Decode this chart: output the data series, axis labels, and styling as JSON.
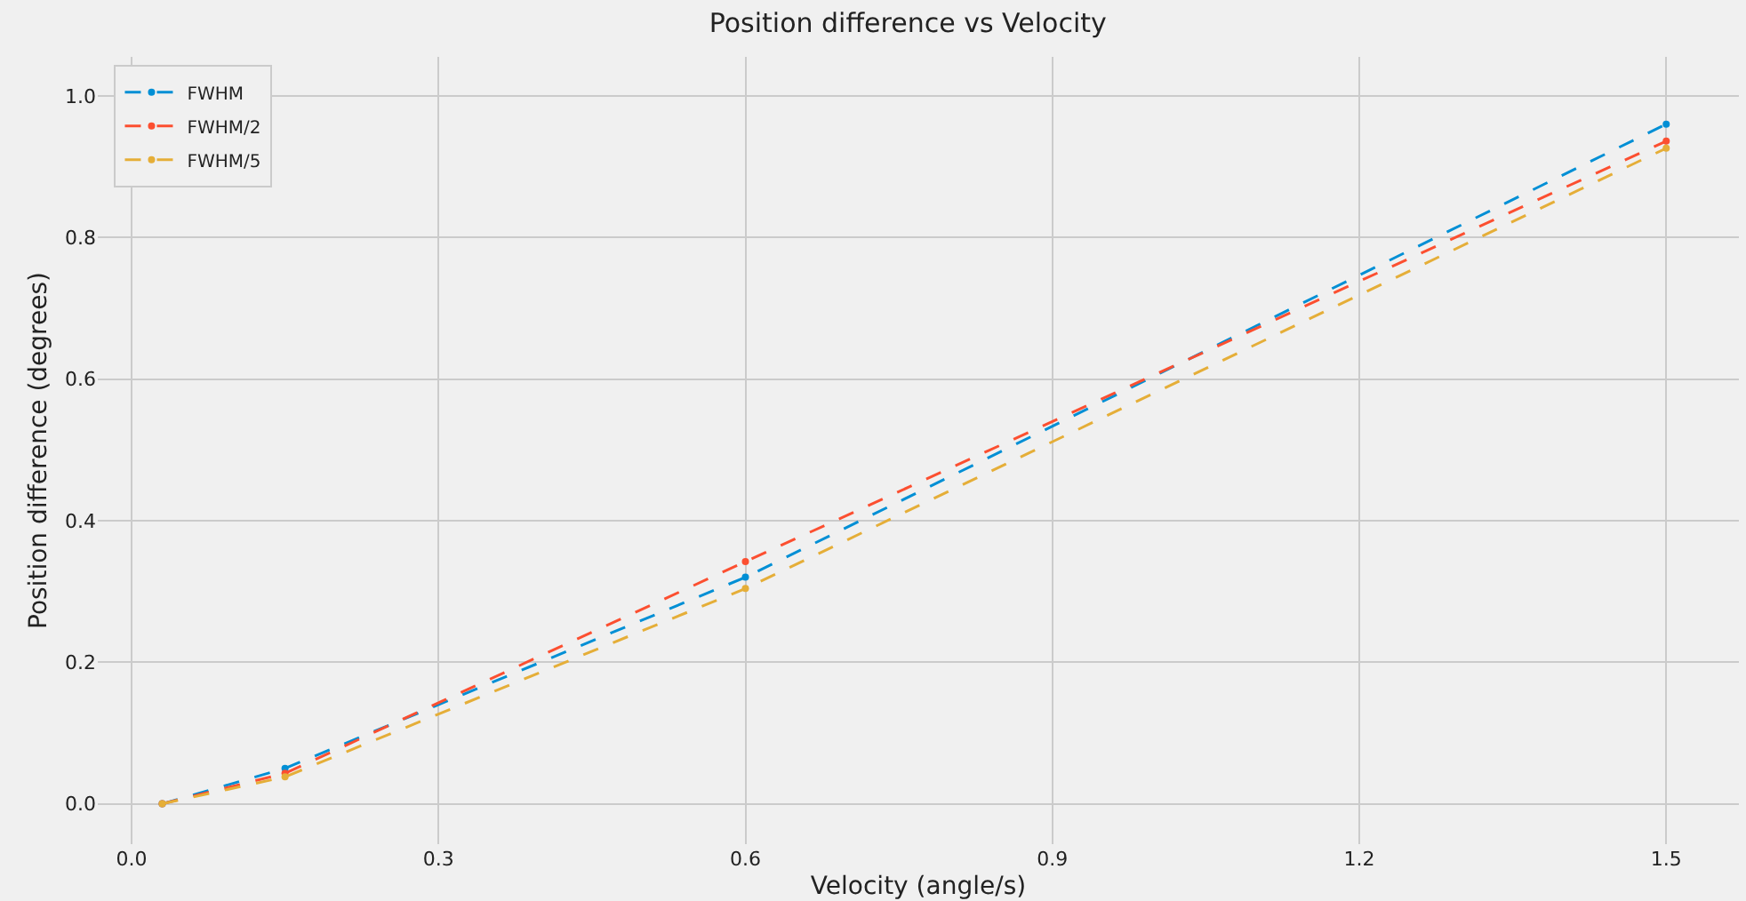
{
  "chart_data": {
    "type": "line",
    "title": "Position difference vs Velocity",
    "xlabel": "Velocity (angle/s)",
    "ylabel": "Position difference (degrees)",
    "x": [
      0.03,
      0.15,
      0.6,
      1.5
    ],
    "series": [
      {
        "name": "FWHM",
        "color": "#008fd5",
        "values": [
          0.0,
          0.05,
          0.32,
          0.96
        ]
      },
      {
        "name": "FWHM/2",
        "color": "#fc4f30",
        "values": [
          0.0,
          0.043,
          0.342,
          0.936
        ]
      },
      {
        "name": "FWHM/5",
        "color": "#e5ae38",
        "values": [
          0.0,
          0.038,
          0.304,
          0.926
        ]
      }
    ],
    "xlim": [
      -0.033,
      1.571
    ],
    "xticks": [
      {
        "value": 0,
        "label": "0.0"
      },
      0.3,
      0.6,
      0.9,
      1.2,
      1.5
    ],
    "ylim": [
      -0.057,
      1.055
    ],
    "yticks": [
      {
        "value": 0,
        "label": "0.0"
      },
      0.2,
      0.4,
      0.6,
      0.8,
      {
        "value": 1,
        "label": "1.0"
      }
    ],
    "grid": true,
    "legend": "top left",
    "marker": "circle",
    "line_style": "dashed"
  }
}
